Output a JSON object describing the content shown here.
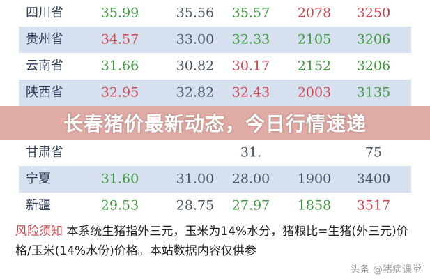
{
  "table": {
    "rows": [
      {
        "name": "四川省",
        "values": [
          "35.99",
          "35.56",
          "35.57",
          "2078",
          "3250"
        ],
        "colors": [
          "g",
          "k",
          "g",
          "r",
          "r"
        ],
        "alt": false
      },
      {
        "name": "贵州省",
        "values": [
          "34.57",
          "33.00",
          "32.33",
          "2105",
          "3206"
        ],
        "colors": [
          "r",
          "k",
          "g",
          "g",
          "g"
        ],
        "alt": true
      },
      {
        "name": "云南省",
        "values": [
          "31.66",
          "30.82",
          "30.17",
          "2152",
          "3206"
        ],
        "colors": [
          "g",
          "k",
          "r",
          "g",
          "g"
        ],
        "alt": false
      },
      {
        "name": "陕西省",
        "values": [
          "32.95",
          "32.82",
          "32.43",
          "2003",
          "3135"
        ],
        "colors": [
          "r",
          "k",
          "r",
          "r",
          "g"
        ],
        "alt": true
      },
      {
        "name": "甘肃省",
        "values": [
          "",
          "",
          "31.",
          "",
          "75"
        ],
        "colors": [
          "k",
          "k",
          "k",
          "k",
          "k"
        ],
        "alt": false
      },
      {
        "name": "宁夏",
        "values": [
          "31.60",
          "31.00",
          "28.00",
          "1900",
          "3400"
        ],
        "colors": [
          "g",
          "k",
          "k",
          "k",
          "k"
        ],
        "alt": true
      },
      {
        "name": "新疆",
        "values": [
          "29.53",
          "28.75",
          "27.97",
          "1858",
          "3517"
        ],
        "colors": [
          "g",
          "k",
          "g",
          "g",
          "r"
        ],
        "alt": false
      }
    ]
  },
  "banner": {
    "title": "长春猪价最新动态，今日行情速递"
  },
  "note": {
    "label": "风险须知",
    "text": " 本系统生猪指外三元，玉米为14%水分，猪粮比=生猪(外三元)价格/玉米(14%水份)价格。本站数据内容仅供参"
  },
  "watermark": "头条 @猪病课堂",
  "colors": {
    "green": "#3d9a3d",
    "red": "#d0454f",
    "stripe": "#d6e0ef",
    "banner": "#cd786e"
  }
}
